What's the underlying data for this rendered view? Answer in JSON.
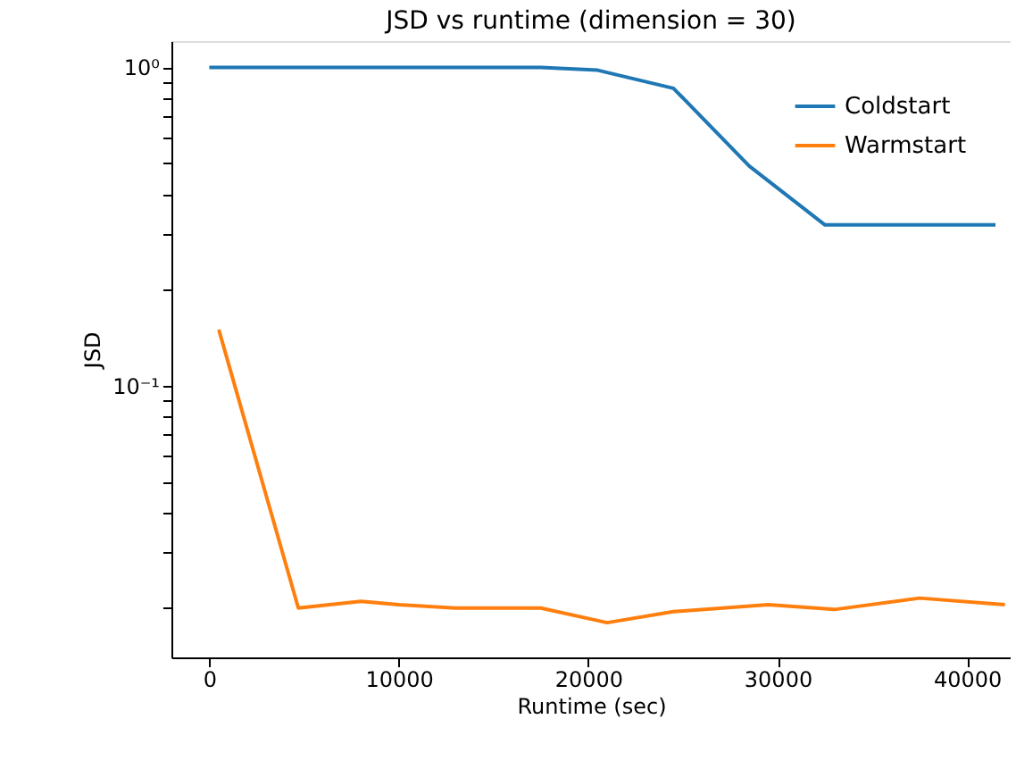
{
  "chart_data": {
    "type": "line",
    "title": "JSD vs runtime (dimension = 30)",
    "xlabel": "Runtime (sec)",
    "ylabel": "JSD",
    "log": "y",
    "grid": false,
    "legend": "top right",
    "line_style": "solid",
    "marker": "none",
    "xlim": [
      -2000,
      42300
    ],
    "xticks": [
      0,
      10000,
      20000,
      30000,
      40000
    ],
    "ylim": [
      0.014,
      1.21
    ],
    "yticks": [
      {
        "value": 1,
        "label": "10⁰"
      },
      {
        "value": 0.1,
        "label": "10⁻¹"
      },
      {
        "value": 0.02,
        "label": null
      },
      {
        "value": 0.03,
        "label": null
      },
      {
        "value": 0.04,
        "label": null
      },
      {
        "value": 0.05,
        "label": null
      },
      {
        "value": 0.06,
        "label": null
      },
      {
        "value": 0.07,
        "label": null
      },
      {
        "value": 0.08,
        "label": null
      },
      {
        "value": 0.09,
        "label": null
      },
      {
        "value": 0.2,
        "label": null
      },
      {
        "value": 0.3,
        "label": null
      },
      {
        "value": 0.4,
        "label": null
      },
      {
        "value": 0.5,
        "label": null
      },
      {
        "value": 0.6,
        "label": null
      },
      {
        "value": 0.7,
        "label": null
      },
      {
        "value": 0.8,
        "label": null
      },
      {
        "value": 0.9,
        "label": null
      }
    ],
    "series": [
      {
        "name": "Coldstart",
        "color": "#1f77b4",
        "x": [
          0,
          17500,
          20500,
          24500,
          28500,
          32500,
          41500
        ],
        "values": [
          1.0,
          1.0,
          0.98,
          0.86,
          0.49,
          0.32,
          0.32
        ]
      },
      {
        "name": "Warmstart",
        "color": "#ff7f0e",
        "x": [
          500,
          4700,
          8000,
          10000,
          13000,
          17500,
          21000,
          24500,
          29500,
          33000,
          37500,
          42000
        ],
        "values": [
          0.15,
          0.02,
          0.021,
          0.0205,
          0.02,
          0.02,
          0.018,
          0.0195,
          0.0205,
          0.0198,
          0.0215,
          0.0205
        ]
      }
    ]
  }
}
